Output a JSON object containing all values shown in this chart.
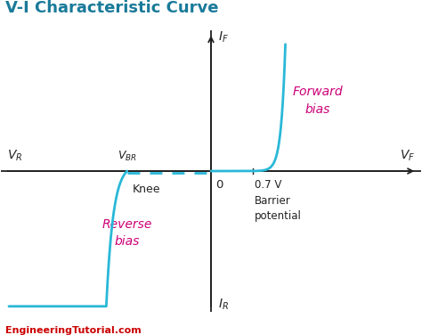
{
  "title": "V-I Characteristic Curve",
  "title_color": "#1a7a9a",
  "title_fontsize": 13,
  "curve_color": "#29b8d8",
  "curve_linewidth": 2.0,
  "axis_color": "#222222",
  "background_color": "#ffffff",
  "forward_bias_label": "Forward\nbias",
  "forward_bias_color": "#cc0077",
  "reverse_bias_label": "Reverse\nbias",
  "reverse_bias_color": "#cc0077",
  "watermark": "EngineeringTutorial.com",
  "watermark_color": "#cc0000",
  "xlim": [
    -5.5,
    5.5
  ],
  "ylim": [
    -5.0,
    5.0
  ],
  "origin_x": 0.0,
  "origin_y": 0.0,
  "VBR_x": -2.2,
  "barrier_x": 1.1
}
